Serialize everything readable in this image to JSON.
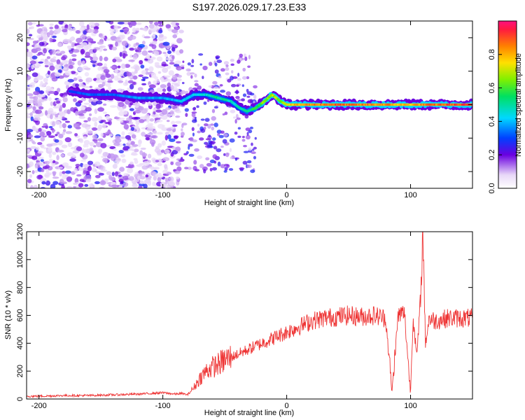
{
  "title": "S197.2026.029.17.23.E33",
  "chart_data": [
    {
      "type": "heatmap",
      "name": "spectrogram",
      "xlabel": "Height of straight line (km)",
      "ylabel": "Frequency (Hz)",
      "xlim": [
        -210,
        150
      ],
      "ylim": [
        -25,
        25
      ],
      "xticks": [
        -200,
        -100,
        0,
        100
      ],
      "yticks": [
        -20,
        -10,
        0,
        10,
        20
      ],
      "colorbar": {
        "label": "Normalized spectral amplitude",
        "range": [
          0,
          1
        ],
        "ticks": [
          0.0,
          0.2,
          0.4,
          0.6,
          0.8
        ],
        "tick_labels": [
          "0.0",
          "0.2",
          "0.4",
          "0.6",
          "0.8"
        ]
      },
      "ridge": {
        "x": [
          -175,
          -160,
          -140,
          -120,
          -100,
          -85,
          -75,
          -65,
          -55,
          -45,
          -38,
          -32,
          -25,
          -18,
          -12,
          -5,
          0,
          10,
          20,
          40,
          60,
          80,
          90,
          100,
          110,
          130,
          150
        ],
        "freq": [
          4,
          3,
          3,
          2,
          2,
          1,
          3,
          3,
          2,
          1,
          -1,
          -2,
          -1,
          1,
          3,
          1,
          0,
          0,
          0,
          0,
          0,
          0,
          0,
          0,
          0,
          0,
          0
        ],
        "amplitude": [
          0.3,
          0.35,
          0.35,
          0.4,
          0.4,
          0.45,
          0.45,
          0.5,
          0.55,
          0.5,
          0.5,
          0.55,
          0.6,
          0.7,
          0.75,
          0.7,
          0.8,
          0.85,
          0.9,
          0.95,
          0.9,
          0.9,
          0.85,
          0.85,
          0.9,
          0.95,
          0.95
        ]
      }
    },
    {
      "type": "line",
      "name": "snr",
      "xlabel": "Height of straight line (km)",
      "ylabel": "SNR (10 * v/v)",
      "xlim": [
        -210,
        150
      ],
      "ylim": [
        0,
        1200
      ],
      "xticks": [
        -200,
        -100,
        0,
        100
      ],
      "yticks": [
        0,
        200,
        400,
        600,
        800,
        1000,
        1200
      ],
      "color": "#ee3333",
      "series": [
        {
          "name": "SNR",
          "x": [
            -210,
            -200,
            -180,
            -160,
            -140,
            -120,
            -110,
            -100,
            -90,
            -85,
            -80,
            -75,
            -70,
            -65,
            -60,
            -55,
            -50,
            -45,
            -40,
            -35,
            -30,
            -25,
            -20,
            -15,
            -10,
            -5,
            0,
            5,
            10,
            15,
            20,
            25,
            30,
            40,
            50,
            60,
            70,
            80,
            85,
            90,
            95,
            100,
            102,
            105,
            108,
            110,
            112,
            115,
            120,
            130,
            140,
            150
          ],
          "y": [
            20,
            20,
            25,
            25,
            30,
            35,
            40,
            45,
            35,
            40,
            30,
            80,
            150,
            200,
            230,
            250,
            280,
            300,
            320,
            340,
            360,
            380,
            400,
            420,
            440,
            460,
            480,
            500,
            520,
            540,
            560,
            570,
            580,
            590,
            600,
            590,
            600,
            580,
            50,
            600,
            620,
            40,
            600,
            300,
            700,
            1200,
            400,
            580,
            560,
            580,
            580,
            580
          ]
        }
      ]
    }
  ]
}
